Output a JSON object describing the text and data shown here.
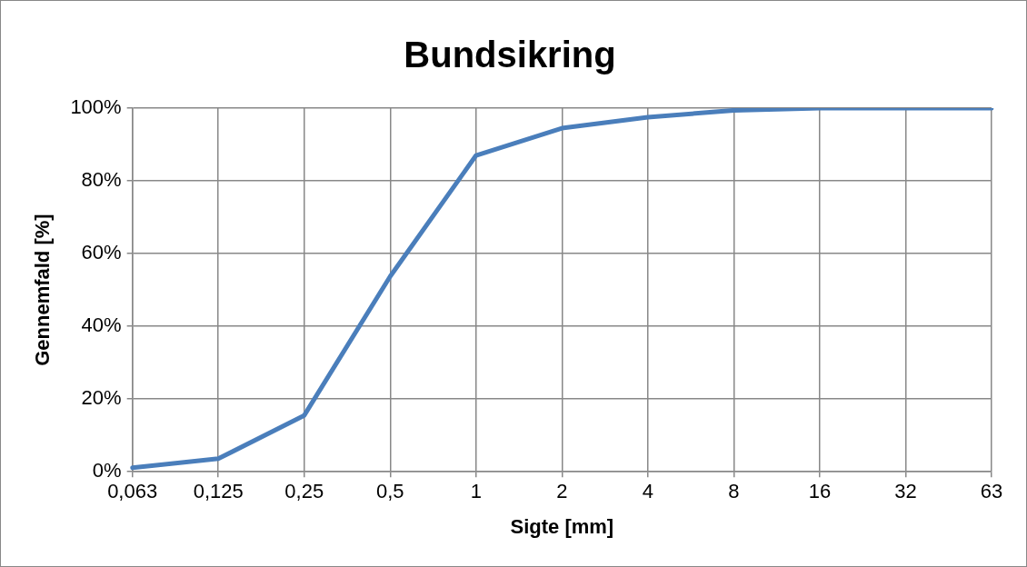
{
  "chart_data": {
    "type": "line",
    "title": "Bundsikring",
    "xlabel": "Sigte [mm]",
    "ylabel": "Gennemfald [%]",
    "categories": [
      "0,063",
      "0,125",
      "0,25",
      "0,5",
      "1",
      "2",
      "4",
      "8",
      "16",
      "32",
      "63"
    ],
    "series": [
      {
        "color": "#4a7ebb",
        "values": [
          1.1,
          3.6,
          15.5,
          53.7,
          87,
          94.5,
          97.5,
          99.4,
          100,
          100,
          100
        ]
      }
    ],
    "ylim": [
      0,
      100
    ],
    "yticks": [
      {
        "value": 0,
        "label": "0%"
      },
      {
        "value": 20,
        "label": "20%"
      },
      {
        "value": 40,
        "label": "40%"
      },
      {
        "value": 60,
        "label": "60%"
      },
      {
        "value": 80,
        "label": "80%"
      },
      {
        "value": 100,
        "label": "100%"
      }
    ],
    "grid": true,
    "legend": false,
    "marker": "none",
    "line_style": "solid"
  }
}
